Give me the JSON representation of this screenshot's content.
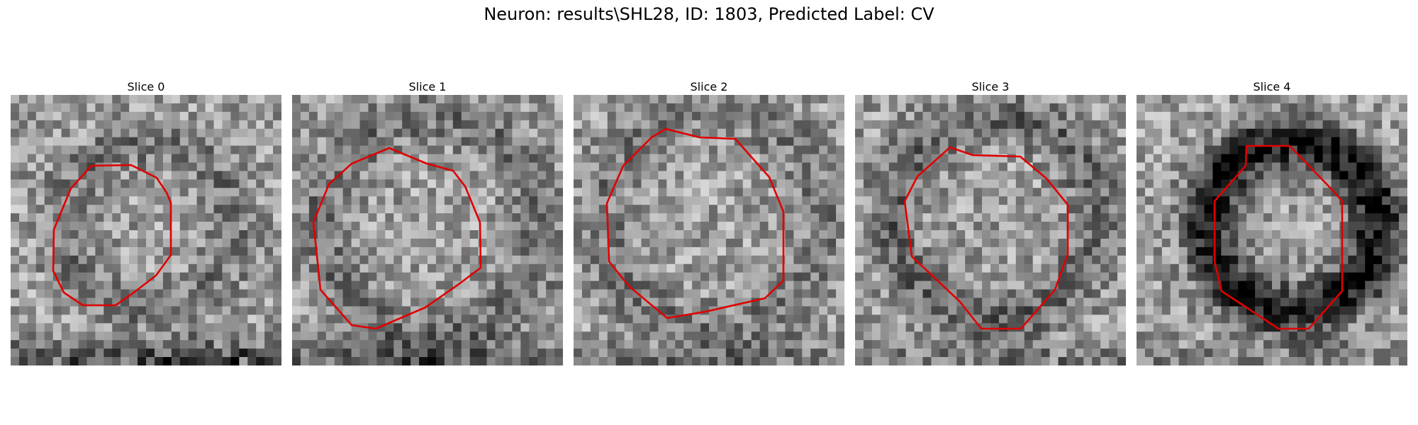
{
  "figure": {
    "title": "Neuron: results\\SHL28, ID: 1803, Predicted Label: CV"
  },
  "contour_color": "#e00000",
  "panels": [
    {
      "title": "Slice 0",
      "icon": "grayscale-microscopy-slice"
    },
    {
      "title": "Slice 1",
      "icon": "grayscale-microscopy-slice"
    },
    {
      "title": "Slice 2",
      "icon": "grayscale-microscopy-slice"
    },
    {
      "title": "Slice 3",
      "icon": "grayscale-microscopy-slice"
    },
    {
      "title": "Slice 4",
      "icon": "grayscale-microscopy-slice"
    }
  ]
}
